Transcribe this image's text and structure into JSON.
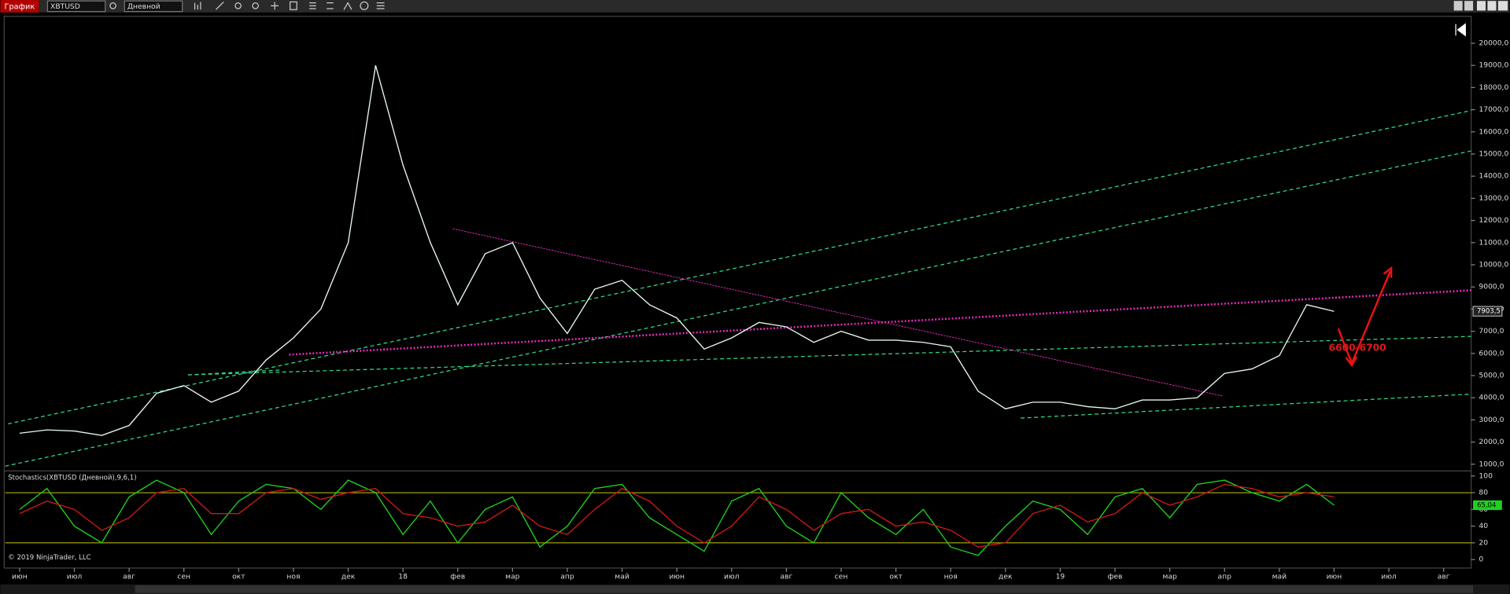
{
  "toolbar": {
    "chart_button": "График",
    "instrument": "XBTUSD",
    "period": "Дневной"
  },
  "footer": "© 2019 NinjaTrader, LLC",
  "annotations": [
    {
      "text": "6600-6700"
    }
  ],
  "chart_data": [
    {
      "type": "line",
      "categories": [
        "июн",
        null,
        "июл",
        null,
        "авг",
        null,
        "сен",
        null,
        "окт",
        null,
        "ноя",
        null,
        "дек",
        null,
        "18",
        null,
        "фев",
        null,
        "мар",
        null,
        "апр",
        null,
        "май",
        null,
        "июн",
        null,
        "июл",
        null,
        "авг",
        null,
        "сен",
        null,
        "окт",
        null,
        "ноя",
        null,
        "дек",
        null,
        "19",
        null,
        "фев",
        null,
        "мар",
        null,
        "апр",
        null,
        "май",
        null,
        "июн",
        null,
        "июл",
        null,
        "авг",
        null
      ],
      "series": [
        {
          "color": "#e8f8ee",
          "values": [
            2400,
            2550,
            2500,
            2300,
            2750,
            4200,
            4550,
            3800,
            4300,
            5700,
            6700,
            8000,
            11000,
            19000,
            14500,
            11000,
            8200,
            10500,
            11000,
            8500,
            6900,
            8900,
            9300,
            8200,
            7600,
            6200,
            6700,
            7400,
            7200,
            6500,
            7000,
            6600,
            6600,
            6500,
            6300,
            4300,
            3500,
            3800,
            3800,
            3600,
            3500,
            3900,
            3900,
            4000,
            5100,
            5300,
            5900,
            8200,
            7900,
            null,
            null,
            null,
            null,
            null
          ]
        }
      ],
      "current": {
        "value": 7903.5,
        "label": "7903,5"
      },
      "ylim": [
        696,
        21170
      ],
      "yticks": [
        {
          "value": 1000,
          "label": "1000,0"
        },
        {
          "value": 2000,
          "label": "2000,0"
        },
        {
          "value": 3000,
          "label": "3000,0"
        },
        {
          "value": 4000,
          "label": "4000,0"
        },
        {
          "value": 5000,
          "label": "5000,0"
        },
        {
          "value": 6000,
          "label": "6000,0"
        },
        {
          "value": 7000,
          "label": "7000,0"
        },
        {
          "value": 8000,
          "label": "8000,0"
        },
        {
          "value": 9000,
          "label": "9000,0"
        },
        {
          "value": 10000,
          "label": "10000,0"
        },
        {
          "value": 11000,
          "label": "11000,0"
        },
        {
          "value": 12000,
          "label": "12000,0"
        },
        {
          "value": 13000,
          "label": "13000,0"
        },
        {
          "value": 14000,
          "label": "14000,0"
        },
        {
          "value": 15000,
          "label": "15000,0"
        },
        {
          "value": 16000,
          "label": "16000,0"
        },
        {
          "value": 17000,
          "label": "17000,0"
        },
        {
          "value": 18000,
          "label": "18000,0"
        },
        {
          "value": 19000,
          "label": "19000,0"
        },
        {
          "value": 20000,
          "label": "20000,0"
        }
      ]
    },
    {
      "type": "line",
      "title": "Stochastics(XBTUSD (Дневной),9,6,1)",
      "series": [
        {
          "color": "#1fd21f",
          "values": [
            60,
            85,
            40,
            20,
            75,
            95,
            80,
            30,
            70,
            90,
            85,
            60,
            95,
            80,
            30,
            70,
            20,
            60,
            75,
            15,
            40,
            85,
            90,
            50,
            30,
            10,
            70,
            85,
            40,
            20,
            80,
            50,
            30,
            60,
            15,
            5,
            40,
            70,
            60,
            30,
            75,
            85,
            50,
            90,
            95,
            80,
            70,
            90,
            65.04,
            null,
            null,
            null,
            null,
            null
          ]
        },
        {
          "color": "#d01818",
          "values": [
            55,
            70,
            60,
            35,
            50,
            80,
            85,
            55,
            55,
            80,
            85,
            72,
            80,
            85,
            55,
            50,
            40,
            45,
            65,
            40,
            30,
            60,
            85,
            70,
            40,
            20,
            40,
            75,
            60,
            35,
            55,
            60,
            40,
            45,
            35,
            15,
            20,
            55,
            65,
            45,
            55,
            80,
            65,
            75,
            90,
            85,
            75,
            80,
            75,
            null,
            null,
            null,
            null,
            null
          ]
        }
      ],
      "current": {
        "value": 65.04,
        "label": "65,04"
      },
      "levels": [
        20,
        80
      ],
      "level_color": "#c8c800",
      "ylim": [
        -9,
        106
      ],
      "yticks": [
        0,
        20,
        40,
        60,
        80,
        100
      ]
    }
  ]
}
